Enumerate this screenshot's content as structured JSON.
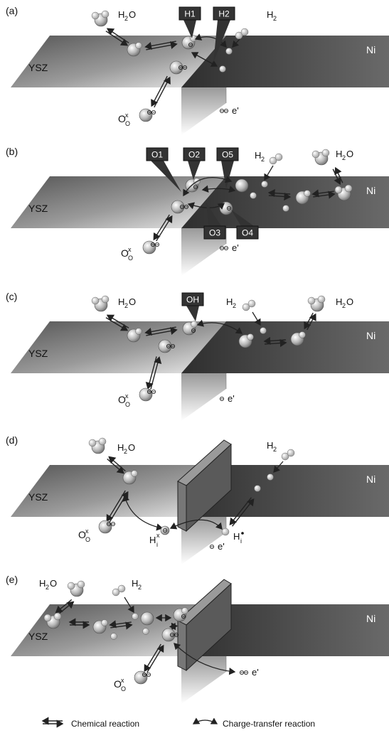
{
  "panels": [
    {
      "letter": "(a)"
    },
    {
      "letter": "(b)"
    },
    {
      "letter": "(c)"
    },
    {
      "letter": "(d)"
    },
    {
      "letter": "(e)"
    }
  ],
  "labels": {
    "ysz": "YSZ",
    "ni": "Ni",
    "h2o": "H₂O",
    "h2": "H₂",
    "oxygen_site": "Oₒˣ",
    "electron": "e'",
    "double_minus": "⊖⊖",
    "single_minus": "⊖",
    "hydrogen_interstitial_neutral": "Hᵢˣ",
    "hydrogen_interstitial_positive": "Hᵢ•"
  },
  "tags": {
    "h1": "H1",
    "h2": "H2",
    "o1": "O1",
    "o2": "O2",
    "o5": "O5",
    "o3": "O3",
    "o4": "O4",
    "oh": "OH"
  },
  "legend": {
    "chemical": "Chemical reaction",
    "charge_transfer": "Charge-transfer reaction"
  },
  "colors": {
    "ni_dark": "#3a3a3a",
    "ysz_light": "#d8d8d8",
    "tag_bg": "#333333",
    "sphere": "#bdbdbd"
  }
}
